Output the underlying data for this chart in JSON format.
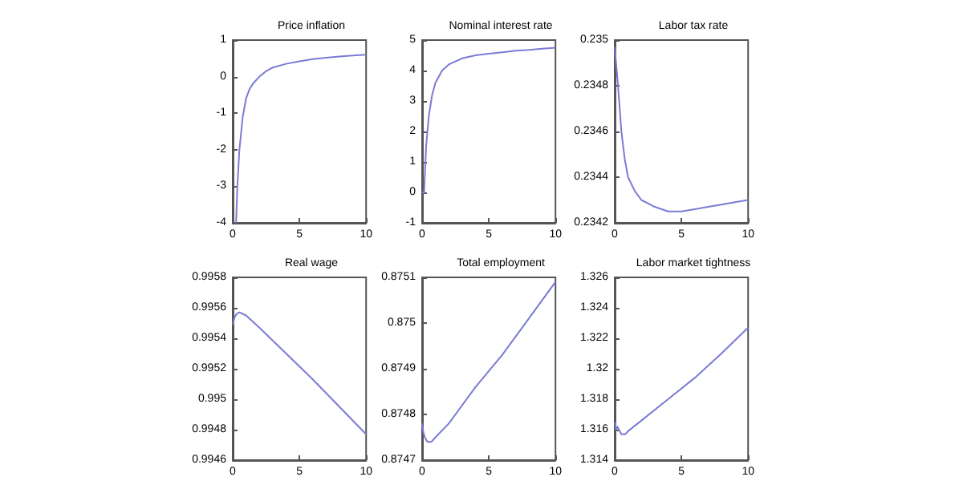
{
  "chart_data": [
    {
      "type": "line",
      "title": "Price inflation",
      "x": [
        0.25,
        0.35,
        0.5,
        0.75,
        1,
        1.25,
        1.5,
        2,
        2.5,
        3,
        4,
        5,
        6,
        7,
        8,
        9,
        10
      ],
      "series": [
        {
          "color": "#7b7bd6",
          "values": [
            -4,
            -3,
            -2,
            -1.1,
            -0.6,
            -0.35,
            -0.2,
            0,
            0.15,
            0.25,
            0.35,
            0.42,
            0.48,
            0.52,
            0.55,
            0.58,
            0.6
          ]
        }
      ],
      "xlim": [
        0,
        10
      ],
      "xticks": [
        0,
        5,
        10
      ],
      "ylim": [
        -4,
        1
      ],
      "yticks": [
        -4,
        -3,
        -2,
        -1,
        0,
        1
      ],
      "grid": false,
      "marker": "none",
      "line_style": "solid"
    },
    {
      "type": "line",
      "title": "Nominal interest rate",
      "x": [
        0,
        0.15,
        0.3,
        0.5,
        0.75,
        1,
        1.5,
        2,
        3,
        4,
        5,
        6,
        7,
        8,
        9,
        10
      ],
      "series": [
        {
          "color": "#7b7bd6",
          "values": [
            0,
            0,
            1.5,
            2.5,
            3.2,
            3.6,
            4,
            4.2,
            4.4,
            4.5,
            4.55,
            4.6,
            4.65,
            4.68,
            4.72,
            4.75
          ]
        }
      ],
      "xlim": [
        0,
        10
      ],
      "xticks": [
        0,
        5,
        10
      ],
      "ylim": [
        -1,
        5
      ],
      "yticks": [
        -1,
        0,
        1,
        2,
        3,
        4,
        5
      ],
      "grid": false,
      "marker": "none",
      "line_style": "solid"
    },
    {
      "type": "line",
      "title": "Labor tax rate",
      "x": [
        0,
        0.25,
        0.5,
        0.75,
        1,
        1.5,
        2,
        3,
        4,
        5,
        6,
        7,
        8,
        9,
        10
      ],
      "series": [
        {
          "color": "#7b7bd6",
          "values": [
            0.23497,
            0.2348,
            0.2346,
            0.23448,
            0.2344,
            0.23434,
            0.2343,
            0.23427,
            0.23425,
            0.23425,
            0.23426,
            0.23427,
            0.23428,
            0.23429,
            0.2343
          ]
        }
      ],
      "xlim": [
        0,
        10
      ],
      "xticks": [
        0,
        5,
        10
      ],
      "ylim": [
        0.2342,
        0.235
      ],
      "yticks": [
        0.2342,
        0.2344,
        0.2346,
        0.2348,
        0.235
      ],
      "grid": false,
      "marker": "none",
      "line_style": "solid"
    },
    {
      "type": "line",
      "title": "Real wage",
      "x": [
        0,
        0.15,
        0.3,
        0.5,
        1,
        2,
        4,
        6,
        8,
        10
      ],
      "series": [
        {
          "color": "#7b7bd6",
          "values": [
            0.99549,
            0.99554,
            0.99556,
            0.99557,
            0.99555,
            0.99547,
            0.9953,
            0.99513,
            0.99495,
            0.99477
          ]
        }
      ],
      "xlim": [
        0,
        10
      ],
      "xticks": [
        0,
        5,
        10
      ],
      "ylim": [
        0.9946,
        0.9958
      ],
      "yticks": [
        0.9946,
        0.9948,
        0.995,
        0.9952,
        0.9954,
        0.9956,
        0.9958
      ],
      "grid": false,
      "marker": "none",
      "line_style": "solid"
    },
    {
      "type": "line",
      "title": "Total employment",
      "x": [
        0,
        0.1,
        0.2,
        0.4,
        0.7,
        1,
        2,
        4,
        6,
        8,
        10
      ],
      "series": [
        {
          "color": "#7b7bd6",
          "values": [
            0.87478,
            0.87476,
            0.87475,
            0.87474,
            0.87474,
            0.87475,
            0.87478,
            0.87486,
            0.87493,
            0.87501,
            0.87509
          ]
        }
      ],
      "xlim": [
        0,
        10
      ],
      "xticks": [
        0,
        5,
        10
      ],
      "ylim": [
        0.8747,
        0.8751
      ],
      "yticks": [
        0.8747,
        0.8748,
        0.8749,
        0.875,
        0.8751
      ],
      "grid": false,
      "marker": "none",
      "line_style": "solid"
    },
    {
      "type": "line",
      "title": "Labor market tightness",
      "x": [
        0,
        0.1,
        0.2,
        0.5,
        0.8,
        1,
        2,
        4,
        6,
        8,
        10
      ],
      "series": [
        {
          "color": "#7b7bd6",
          "values": [
            1.3165,
            1.316,
            1.3162,
            1.3157,
            1.3157,
            1.3159,
            1.3166,
            1.318,
            1.3194,
            1.321,
            1.3227
          ]
        }
      ],
      "xlim": [
        0,
        10
      ],
      "xticks": [
        0,
        5,
        10
      ],
      "ylim": [
        1.314,
        1.326
      ],
      "yticks": [
        1.314,
        1.316,
        1.318,
        1.32,
        1.322,
        1.324,
        1.326
      ],
      "grid": false,
      "marker": "none",
      "line_style": "solid"
    }
  ]
}
